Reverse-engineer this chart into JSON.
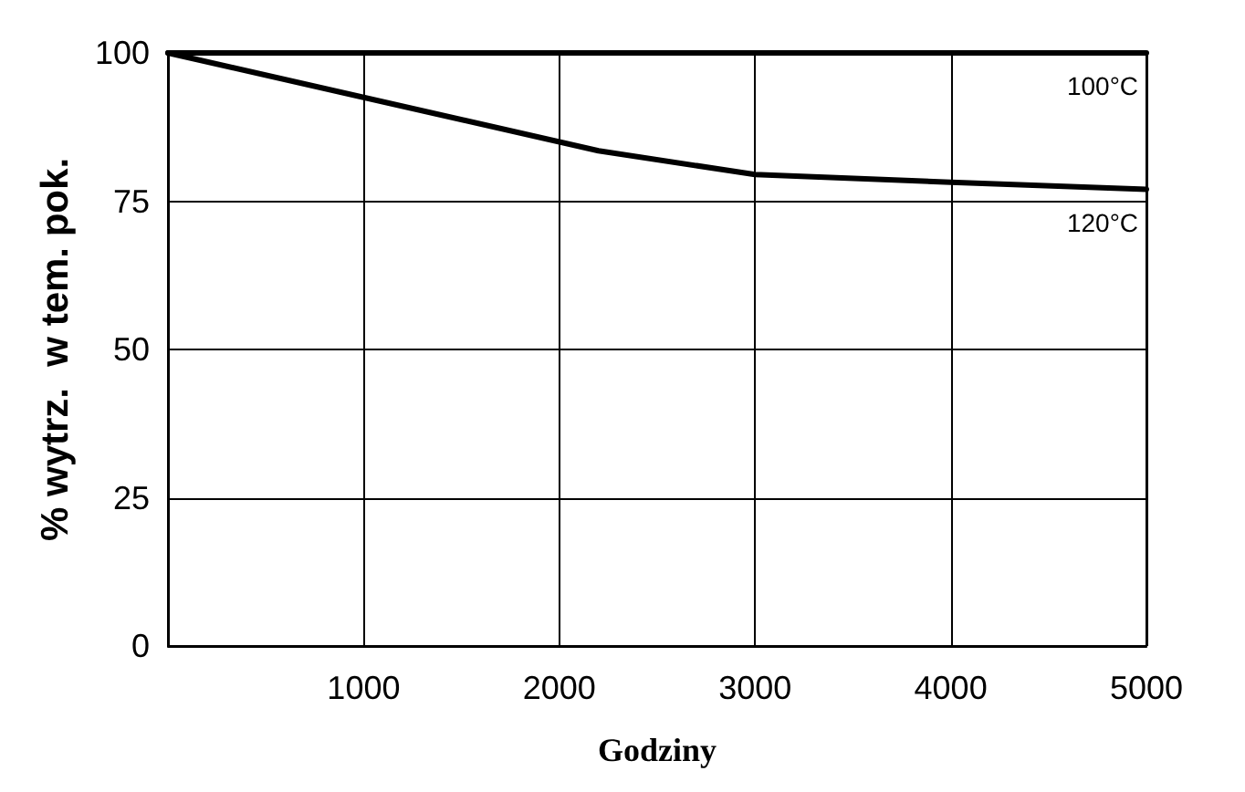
{
  "chart_data": {
    "type": "line",
    "xlabel": "Godziny",
    "ylabel": "% wytrz.  w tem. pok.",
    "series": [
      {
        "name": "100°C",
        "color": "#000000",
        "x": [
          0,
          5000
        ],
        "values": [
          100,
          100
        ]
      },
      {
        "name": "120°C",
        "color": "#000000",
        "x": [
          0,
          1000,
          2200,
          3000,
          4000,
          5000
        ],
        "values": [
          100,
          92.5,
          83.5,
          79.5,
          78.2,
          77
        ]
      }
    ],
    "xlim": [
      0,
      5000
    ],
    "xticks": [
      1000,
      2000,
      3000,
      4000,
      5000
    ],
    "ylim": [
      0,
      100
    ],
    "yticks": [
      0,
      25,
      50,
      75,
      100
    ],
    "grid": true,
    "legend": false,
    "marker": "none",
    "line_style": "solid"
  }
}
